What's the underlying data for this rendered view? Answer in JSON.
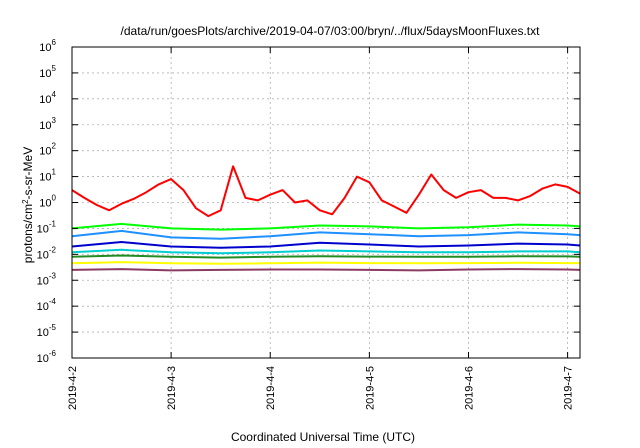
{
  "chart_data": {
    "type": "line",
    "title": "/data/run/goesPlots/archive/2019-04-07/03:00/bryn/../flux/5daysMoonFluxes.txt",
    "xlabel": "Coordinated Universal Time (UTC)",
    "ylabel_parts": {
      "base": "protons/cm",
      "sup": "2",
      "rest": "-s-sr-MeV"
    },
    "y_scale": "log",
    "ylim": [
      1e-06,
      1000000.0
    ],
    "y_ticks": [
      {
        "value": 1e-06,
        "base": "10",
        "exp": "-6"
      },
      {
        "value": 1e-05,
        "base": "10",
        "exp": "-5"
      },
      {
        "value": 0.0001,
        "base": "10",
        "exp": "-4"
      },
      {
        "value": 0.001,
        "base": "10",
        "exp": "-3"
      },
      {
        "value": 0.01,
        "base": "10",
        "exp": "-2"
      },
      {
        "value": 0.1,
        "base": "10",
        "exp": "-1"
      },
      {
        "value": 1,
        "base": "10",
        "exp": "0"
      },
      {
        "value": 10,
        "base": "10",
        "exp": "1"
      },
      {
        "value": 100,
        "base": "10",
        "exp": "2"
      },
      {
        "value": 1000,
        "base": "10",
        "exp": "3"
      },
      {
        "value": 10000,
        "base": "10",
        "exp": "4"
      },
      {
        "value": 100000,
        "base": "10",
        "exp": "5"
      },
      {
        "value": 1000000,
        "base": "10",
        "exp": "6"
      }
    ],
    "x_ticks": [
      "2019-4-2",
      "2019-4-3",
      "2019-4-4",
      "2019-4-5",
      "2019-4-6",
      "2019-4-7"
    ],
    "xlim": [
      "2019-4-2 00:00",
      "2019-4-7 03:00"
    ],
    "grid": true,
    "series": [
      {
        "color": "#ff0000",
        "x": [
          "2019-4-2 00:00",
          "2019-4-2 03:00",
          "2019-4-2 06:00",
          "2019-4-2 09:00",
          "2019-4-2 12:00",
          "2019-4-2 15:00",
          "2019-4-2 18:00",
          "2019-4-2 21:00",
          "2019-4-3 00:00",
          "2019-4-3 03:00",
          "2019-4-3 06:00",
          "2019-4-3 09:00",
          "2019-4-3 12:00",
          "2019-4-3 15:00",
          "2019-4-3 18:00",
          "2019-4-3 21:00",
          "2019-4-4 00:00",
          "2019-4-4 03:00",
          "2019-4-4 06:00",
          "2019-4-4 09:00",
          "2019-4-4 12:00",
          "2019-4-4 15:00",
          "2019-4-4 18:00",
          "2019-4-4 21:00",
          "2019-4-5 00:00",
          "2019-4-5 03:00",
          "2019-4-5 06:00",
          "2019-4-5 09:00",
          "2019-4-5 12:00",
          "2019-4-5 15:00",
          "2019-4-5 18:00",
          "2019-4-5 21:00",
          "2019-4-6 00:00",
          "2019-4-6 03:00",
          "2019-4-6 06:00",
          "2019-4-6 09:00",
          "2019-4-6 12:00",
          "2019-4-6 15:00",
          "2019-4-6 18:00",
          "2019-4-6 21:00",
          "2019-4-7 00:00",
          "2019-4-7 03:00"
        ],
        "values": [
          3,
          1.5,
          0.8,
          0.5,
          0.9,
          1.4,
          2.5,
          5,
          8,
          3,
          0.6,
          0.3,
          0.5,
          25,
          1.5,
          1.2,
          2,
          3,
          1,
          1.2,
          0.5,
          0.35,
          1.5,
          10,
          6,
          1.2,
          0.7,
          0.4,
          2,
          12,
          3,
          1.5,
          2.5,
          3,
          1.5,
          1.5,
          1.2,
          1.8,
          3.5,
          5,
          4,
          2.2
        ]
      },
      {
        "color": "#00ff00",
        "x": [
          "2019-4-2 00:00",
          "2019-4-2 12:00",
          "2019-4-3 00:00",
          "2019-4-3 12:00",
          "2019-4-4 00:00",
          "2019-4-4 12:00",
          "2019-4-5 00:00",
          "2019-4-5 12:00",
          "2019-4-6 00:00",
          "2019-4-6 12:00",
          "2019-4-7 00:00",
          "2019-4-7 03:00"
        ],
        "values": [
          0.1,
          0.15,
          0.1,
          0.09,
          0.1,
          0.13,
          0.12,
          0.1,
          0.11,
          0.14,
          0.13,
          0.12
        ]
      },
      {
        "color": "#1e90ff",
        "x": [
          "2019-4-2 00:00",
          "2019-4-2 12:00",
          "2019-4-3 00:00",
          "2019-4-3 12:00",
          "2019-4-4 00:00",
          "2019-4-4 12:00",
          "2019-4-5 00:00",
          "2019-4-5 12:00",
          "2019-4-6 00:00",
          "2019-4-6 12:00",
          "2019-4-7 00:00",
          "2019-4-7 03:00"
        ],
        "values": [
          0.05,
          0.08,
          0.045,
          0.04,
          0.05,
          0.07,
          0.06,
          0.05,
          0.055,
          0.07,
          0.06,
          0.055
        ]
      },
      {
        "color": "#0000cd",
        "x": [
          "2019-4-2 00:00",
          "2019-4-2 12:00",
          "2019-4-3 00:00",
          "2019-4-3 12:00",
          "2019-4-4 00:00",
          "2019-4-4 12:00",
          "2019-4-5 00:00",
          "2019-4-5 12:00",
          "2019-4-6 00:00",
          "2019-4-6 12:00",
          "2019-4-7 00:00",
          "2019-4-7 03:00"
        ],
        "values": [
          0.02,
          0.03,
          0.02,
          0.018,
          0.02,
          0.028,
          0.024,
          0.02,
          0.022,
          0.026,
          0.024,
          0.022
        ]
      },
      {
        "color": "#00ced1",
        "x": [
          "2019-4-2 00:00",
          "2019-4-2 12:00",
          "2019-4-3 00:00",
          "2019-4-3 12:00",
          "2019-4-4 00:00",
          "2019-4-4 12:00",
          "2019-4-5 00:00",
          "2019-4-5 12:00",
          "2019-4-6 00:00",
          "2019-4-6 12:00",
          "2019-4-7 00:00",
          "2019-4-7 03:00"
        ],
        "values": [
          0.012,
          0.015,
          0.012,
          0.011,
          0.012,
          0.014,
          0.013,
          0.012,
          0.012,
          0.013,
          0.013,
          0.012
        ]
      },
      {
        "color": "#228b22",
        "x": [
          "2019-4-2 00:00",
          "2019-4-2 12:00",
          "2019-4-3 00:00",
          "2019-4-3 12:00",
          "2019-4-4 00:00",
          "2019-4-4 12:00",
          "2019-4-5 00:00",
          "2019-4-5 12:00",
          "2019-4-6 00:00",
          "2019-4-6 12:00",
          "2019-4-7 00:00",
          "2019-4-7 03:00"
        ],
        "values": [
          0.008,
          0.009,
          0.008,
          0.0075,
          0.008,
          0.0085,
          0.0082,
          0.008,
          0.0081,
          0.0084,
          0.0083,
          0.0081
        ]
      },
      {
        "color": "#ffff00",
        "x": [
          "2019-4-2 00:00",
          "2019-4-2 12:00",
          "2019-4-3 00:00",
          "2019-4-3 12:00",
          "2019-4-4 00:00",
          "2019-4-4 12:00",
          "2019-4-5 00:00",
          "2019-4-5 12:00",
          "2019-4-6 00:00",
          "2019-4-6 12:00",
          "2019-4-7 00:00",
          "2019-4-7 03:00"
        ],
        "values": [
          0.0045,
          0.005,
          0.0045,
          0.0043,
          0.0045,
          0.0048,
          0.0046,
          0.0045,
          0.0046,
          0.0047,
          0.0046,
          0.0045
        ]
      },
      {
        "color": "#8b3a62",
        "x": [
          "2019-4-2 00:00",
          "2019-4-2 12:00",
          "2019-4-3 00:00",
          "2019-4-3 12:00",
          "2019-4-4 00:00",
          "2019-4-4 12:00",
          "2019-4-5 00:00",
          "2019-4-5 12:00",
          "2019-4-6 00:00",
          "2019-4-6 12:00",
          "2019-4-7 00:00",
          "2019-4-7 03:00"
        ],
        "values": [
          0.0025,
          0.0027,
          0.0024,
          0.0025,
          0.0026,
          0.0026,
          0.0025,
          0.0024,
          0.0026,
          0.0027,
          0.0026,
          0.0025
        ]
      }
    ]
  }
}
